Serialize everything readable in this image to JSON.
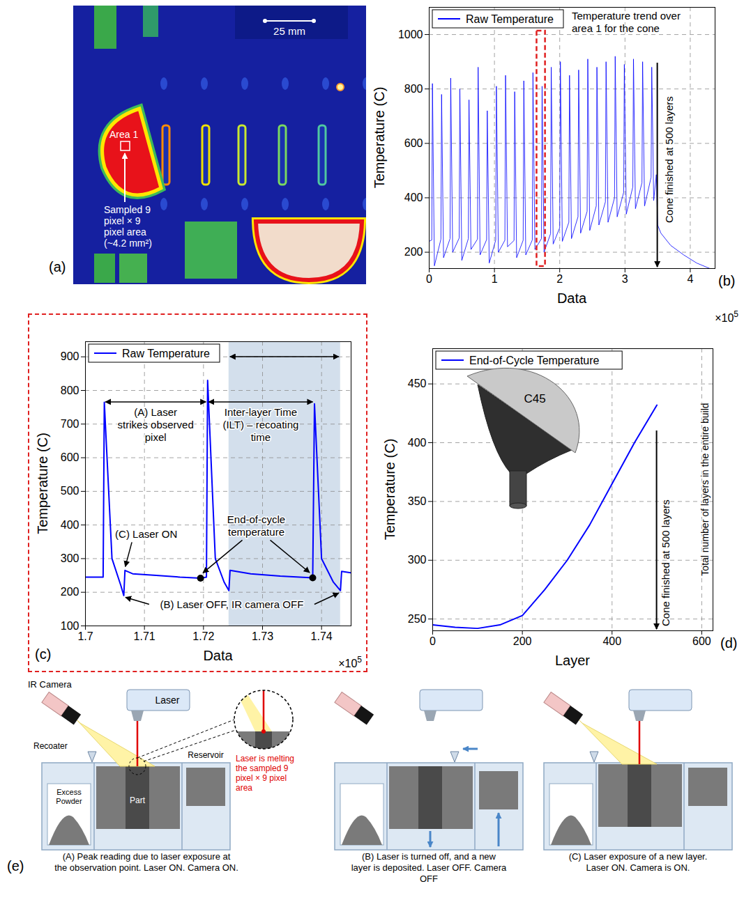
{
  "chart_data": [
    {
      "panel": "(b)",
      "type": "line",
      "xlabel": "Data",
      "ylabel": "Temperature (C)",
      "x_multiplier": {
        "text": "×10",
        "exponent": 5
      },
      "xlim": [
        0,
        4.38
      ],
      "xticks": [
        0,
        1,
        2,
        3,
        4
      ],
      "ylim": [
        140,
        1100
      ],
      "yticks": [
        200,
        400,
        600,
        800,
        1000
      ],
      "grid": true,
      "legend": "top-left",
      "x": [
        0,
        0.04,
        0.05,
        0.08,
        0.18,
        0.19,
        0.22,
        0.32,
        0.33,
        0.36,
        0.46,
        0.47,
        0.5,
        0.6,
        0.61,
        0.64,
        0.74,
        0.75,
        0.78,
        0.88,
        0.89,
        0.92,
        1.02,
        1.03,
        1.06,
        1.16,
        1.17,
        1.2,
        1.3,
        1.31,
        1.34,
        1.44,
        1.45,
        1.48,
        1.58,
        1.59,
        1.62,
        1.72,
        1.73,
        1.76,
        1.86,
        1.87,
        1.9,
        2,
        2.01,
        2.04,
        2.14,
        2.15,
        2.18,
        2.28,
        2.29,
        2.32,
        2.42,
        2.43,
        2.46,
        2.56,
        2.57,
        2.6,
        2.7,
        2.71,
        2.74,
        2.84,
        2.85,
        2.88,
        2.98,
        2.99,
        3.02,
        3.12,
        3.13,
        3.16,
        3.26,
        3.27,
        3.3,
        3.4,
        3.41,
        3.44,
        3.48,
        3.5,
        3.55,
        3.7,
        3.9,
        4.1,
        4.3
      ],
      "series": [
        {
          "name": "Raw Temperature",
          "color": "#0000ff",
          "values": [
            240,
            245,
            820,
            150,
            248,
            780,
            180,
            250,
            840,
            200,
            252,
            800,
            170,
            250,
            760,
            210,
            248,
            880,
            190,
            246,
            720,
            160,
            245,
            810,
            200,
            244,
            850,
            220,
            243,
            790,
            180,
            244,
            830,
            190,
            245,
            860,
            210,
            250,
            810,
            200,
            268,
            880,
            230,
            290,
            900,
            240,
            310,
            850,
            250,
            330,
            870,
            270,
            350,
            910,
            280,
            370,
            880,
            300,
            385,
            900,
            310,
            400,
            920,
            330,
            420,
            890,
            340,
            440,
            910,
            360,
            455,
            900,
            370,
            475,
            880,
            390,
            485,
            300,
            270,
            225,
            190,
            160,
            140
          ]
        }
      ],
      "annotations": {
        "trend": "Temperature trend over area 1 for the cone",
        "cone_finished": {
          "text": "Cone finished at 500 layers",
          "x": 3.5
        }
      },
      "zoom_box": {
        "x": [
          1.65,
          1.78
        ],
        "color": "#e02020"
      }
    },
    {
      "panel": "(c)",
      "type": "line",
      "xlabel": "Data",
      "ylabel": "Temperature (C)",
      "x_multiplier": {
        "text": "×10",
        "exponent": 5
      },
      "xlim": [
        1.7,
        1.745
      ],
      "xticks": [
        1.7,
        1.71,
        1.72,
        1.73,
        1.74
      ],
      "ylim": [
        100,
        945
      ],
      "yticks": [
        100,
        200,
        300,
        400,
        500,
        600,
        700,
        800,
        900
      ],
      "grid": true,
      "legend": "top-left",
      "x": [
        1.7,
        1.703,
        1.7032,
        1.7045,
        1.706,
        1.7065,
        1.7067,
        1.708,
        1.712,
        1.716,
        1.7195,
        1.7205,
        1.7207,
        1.722,
        1.7235,
        1.7243,
        1.7245,
        1.728,
        1.733,
        1.7385,
        1.7388,
        1.74,
        1.742,
        1.7432,
        1.7434,
        1.745
      ],
      "series": [
        {
          "name": "Raw Temperature",
          "color": "#0000ff",
          "values": [
            245,
            245,
            765,
            300,
            220,
            190,
            265,
            255,
            250,
            245,
            242,
            245,
            830,
            300,
            230,
            205,
            265,
            255,
            248,
            243,
            760,
            300,
            230,
            205,
            262,
            258
          ]
        }
      ],
      "inter_layer_time": {
        "x": [
          1.7243,
          1.7432
        ],
        "color": "#d3dfec"
      },
      "end_of_cycle_points": {
        "x": [
          1.7195,
          1.7385
        ],
        "values": [
          242,
          243
        ]
      },
      "annotations": {
        "laser_strike": "(A) Laser strikes observed pixel",
        "ilt": "Inter-layer Time (ILT) – recoating time",
        "laser_on": "(C) Laser ON",
        "end_of_cycle": "End-of-cycle temperature",
        "laser_off": "(B) Laser OFF, IR camera OFF"
      }
    },
    {
      "panel": "(d)",
      "type": "line",
      "xlabel": "Layer",
      "ylabel": "Temperature (C)",
      "xlim": [
        0,
        625
      ],
      "xticks": [
        0,
        200,
        400,
        600
      ],
      "ylim": [
        240,
        480
      ],
      "yticks": [
        250,
        300,
        350,
        400,
        450
      ],
      "grid": true,
      "legend": "top-left",
      "x": [
        0,
        50,
        100,
        150,
        200,
        250,
        300,
        350,
        400,
        450,
        500
      ],
      "series": [
        {
          "name": "End-of-Cycle Temperature",
          "color": "#0000ff",
          "values": [
            245,
            243,
            242,
            245,
            253,
            275,
            300,
            330,
            365,
            400,
            432
          ]
        }
      ],
      "annotations": {
        "cone_finished": {
          "text": "Cone finished at 500 layers",
          "x": 500
        },
        "total_layers": "Total number of layers in the entire build",
        "part_name": "C45"
      }
    }
  ],
  "thermal_image": {
    "panel": "(a)",
    "scale_bar": "25 mm",
    "area_label": "Area 1",
    "sample_note": "Sampled 9 pixel × 9 pixel area (~4.2 mm²)"
  },
  "schematic": {
    "panel": "(e)",
    "labels": {
      "ir_camera": "IR Camera",
      "laser": "Laser",
      "recoater": "Recoater",
      "excess_powder": "Excess Powder",
      "part": "Part",
      "reservoir": "Reservoir"
    },
    "zoom_note": "Laser is melting the sampled 9 pixel × 9 pixel area",
    "steps": [
      {
        "caption": "(A) Peak reading due to laser exposure at the observation point. Laser ON. Camera ON.",
        "laser_on": true
      },
      {
        "caption": "(B) Laser is turned off, and a new layer is deposited. Laser OFF. Camera OFF",
        "laser_on": false
      },
      {
        "caption": "(C) Laser exposure of a new layer. Laser ON. Camera is ON.",
        "laser_on": true
      }
    ]
  }
}
